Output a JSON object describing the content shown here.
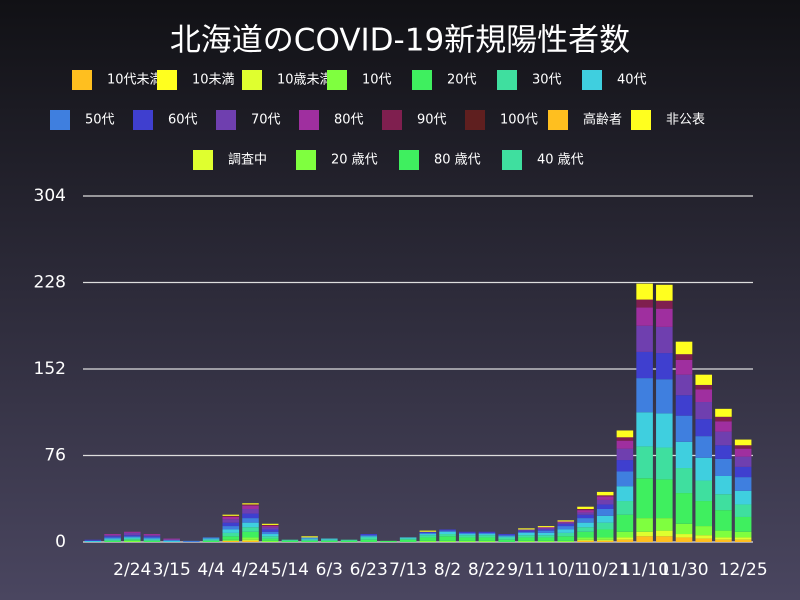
{
  "chart_data": {
    "type": "stacked-bar",
    "title": "北海道のCOVID-19新規陽性者数",
    "categories": [
      null,
      null,
      "2/24",
      null,
      "3/15",
      null,
      "4/4",
      null,
      "4/24",
      null,
      "5/14",
      null,
      "6/3",
      null,
      "6/23",
      null,
      "7/13",
      null,
      "8/2",
      null,
      "8/22",
      null,
      "9/11",
      null,
      "10/1",
      null,
      "10/21",
      null,
      "11/10",
      null,
      "11/30",
      null,
      null,
      "12/25"
    ],
    "ylim": [
      0,
      304
    ],
    "yticks": [
      0,
      76,
      152,
      228,
      304
    ],
    "grid": true,
    "series": [
      {
        "name": "10代未満",
        "color": "#ffbf1f",
        "values": [
          0,
          0,
          0,
          0,
          0,
          0,
          0,
          1,
          1,
          0,
          0,
          0,
          0,
          0,
          0,
          0,
          0,
          0,
          0,
          0,
          0,
          0,
          0,
          0,
          0,
          1,
          1,
          2,
          5,
          5,
          4,
          3,
          2,
          2
        ]
      },
      {
        "name": "10未満",
        "color": "#ffff1f",
        "values": [
          0,
          0,
          0,
          0,
          0,
          0,
          0,
          0,
          0,
          0,
          0,
          0,
          0,
          0,
          0,
          0,
          0,
          0,
          0,
          0,
          0,
          0,
          0,
          0,
          0,
          0,
          0,
          0,
          0,
          0,
          0,
          0,
          0,
          0
        ]
      },
      {
        "name": "10歳未満",
        "color": "#dfff2f",
        "values": [
          0,
          0,
          0,
          0,
          0,
          0,
          0,
          0,
          1,
          0,
          0,
          0,
          0,
          0,
          0,
          0,
          0,
          0,
          0,
          0,
          0,
          0,
          0,
          0,
          0,
          1,
          1,
          2,
          4,
          5,
          3,
          3,
          2,
          2
        ]
      },
      {
        "name": "10代",
        "color": "#7fff3f",
        "values": [
          0,
          0,
          1,
          0,
          0,
          0,
          0,
          1,
          2,
          1,
          0,
          0,
          0,
          0,
          0,
          0,
          0,
          1,
          1,
          1,
          1,
          0,
          1,
          1,
          1,
          2,
          2,
          5,
          12,
          11,
          9,
          8,
          6,
          5
        ]
      },
      {
        "name": "20代",
        "color": "#3fef5f",
        "values": [
          0,
          1,
          1,
          1,
          0,
          0,
          1,
          3,
          5,
          2,
          1,
          1,
          1,
          1,
          2,
          1,
          2,
          3,
          4,
          3,
          3,
          2,
          3,
          3,
          4,
          5,
          7,
          15,
          35,
          34,
          27,
          22,
          18,
          13
        ]
      },
      {
        "name": "30代",
        "color": "#3fdf9f",
        "values": [
          0,
          1,
          1,
          1,
          0,
          0,
          1,
          3,
          4,
          2,
          1,
          1,
          1,
          1,
          2,
          0,
          1,
          2,
          2,
          2,
          2,
          2,
          2,
          2,
          3,
          4,
          6,
          12,
          28,
          28,
          22,
          18,
          14,
          11
        ]
      },
      {
        "name": "40代",
        "color": "#3fcfdf",
        "values": [
          1,
          1,
          1,
          1,
          1,
          0,
          1,
          3,
          4,
          2,
          0,
          1,
          1,
          0,
          1,
          0,
          1,
          1,
          2,
          1,
          1,
          1,
          2,
          2,
          3,
          4,
          6,
          13,
          30,
          30,
          23,
          20,
          16,
          12
        ]
      },
      {
        "name": "50代",
        "color": "#3f7fdf",
        "values": [
          0,
          1,
          1,
          1,
          1,
          1,
          1,
          3,
          4,
          2,
          0,
          1,
          0,
          0,
          1,
          0,
          0,
          1,
          1,
          1,
          1,
          1,
          1,
          2,
          3,
          4,
          6,
          13,
          30,
          30,
          23,
          19,
          15,
          12
        ]
      },
      {
        "name": "60代",
        "color": "#3f3fcf",
        "values": [
          1,
          1,
          1,
          1,
          0,
          0,
          0,
          3,
          4,
          2,
          0,
          0,
          0,
          0,
          1,
          0,
          0,
          1,
          1,
          1,
          1,
          1,
          1,
          1,
          2,
          3,
          4,
          10,
          23,
          23,
          18,
          15,
          12,
          9
        ]
      },
      {
        "name": "70代",
        "color": "#6f3faf",
        "values": [
          0,
          1,
          2,
          1,
          0,
          0,
          0,
          3,
          4,
          2,
          0,
          0,
          0,
          0,
          0,
          0,
          0,
          0,
          0,
          0,
          0,
          0,
          1,
          1,
          1,
          2,
          4,
          10,
          23,
          23,
          18,
          15,
          12,
          9
        ]
      },
      {
        "name": "80代",
        "color": "#9f2f9f",
        "values": [
          0,
          1,
          1,
          1,
          1,
          0,
          0,
          2,
          3,
          1,
          0,
          0,
          0,
          0,
          0,
          0,
          0,
          0,
          0,
          0,
          0,
          0,
          0,
          1,
          1,
          2,
          3,
          7,
          16,
          16,
          13,
          11,
          9,
          7
        ]
      },
      {
        "name": "90代",
        "color": "#7f1f4f",
        "values": [
          0,
          0,
          0,
          0,
          0,
          0,
          0,
          1,
          1,
          1,
          0,
          0,
          0,
          0,
          0,
          0,
          0,
          0,
          0,
          0,
          0,
          0,
          0,
          0,
          0,
          1,
          1,
          3,
          7,
          7,
          5,
          4,
          4,
          3
        ]
      },
      {
        "name": "100代",
        "color": "#5f1f1f",
        "values": [
          0,
          0,
          0,
          0,
          0,
          0,
          0,
          0,
          0,
          0,
          0,
          0,
          0,
          0,
          0,
          0,
          0,
          0,
          0,
          0,
          0,
          0,
          0,
          0,
          0,
          0,
          0,
          0,
          0,
          0,
          0,
          0,
          0,
          0
        ]
      },
      {
        "name": "高齢者",
        "color": "#ffbf1f",
        "values": [
          0,
          0,
          0,
          0,
          0,
          0,
          0,
          0,
          0,
          0,
          0,
          0,
          0,
          0,
          0,
          0,
          0,
          0,
          0,
          0,
          0,
          0,
          0,
          0,
          0,
          0,
          0,
          0,
          0,
          0,
          0,
          0,
          0,
          0
        ]
      },
      {
        "name": "非公表",
        "color": "#ffff1f",
        "values": [
          0,
          0,
          0,
          0,
          0,
          0,
          0,
          1,
          1,
          1,
          0,
          1,
          0,
          0,
          0,
          0,
          0,
          1,
          0,
          0,
          0,
          0,
          1,
          1,
          1,
          2,
          3,
          6,
          14,
          14,
          11,
          9,
          7,
          5
        ]
      },
      {
        "name": "調査中",
        "color": "#dfff2f",
        "values": [
          0,
          0,
          0,
          0,
          0,
          0,
          0,
          0,
          0,
          0,
          0,
          0,
          0,
          0,
          0,
          0,
          0,
          0,
          0,
          0,
          0,
          0,
          0,
          0,
          0,
          0,
          0,
          0,
          0,
          0,
          0,
          0,
          0,
          0
        ]
      },
      {
        "name": "20 歳代",
        "color": "#7fff3f",
        "values": [
          0,
          0,
          0,
          0,
          0,
          0,
          0,
          0,
          0,
          0,
          0,
          0,
          0,
          0,
          0,
          0,
          0,
          0,
          0,
          0,
          0,
          0,
          0,
          0,
          0,
          0,
          0,
          0,
          0,
          0,
          0,
          0,
          0,
          0
        ]
      },
      {
        "name": "80 歳代",
        "color": "#3fef5f",
        "values": [
          0,
          0,
          0,
          0,
          0,
          0,
          0,
          0,
          0,
          0,
          0,
          0,
          0,
          0,
          0,
          0,
          0,
          0,
          0,
          0,
          0,
          0,
          0,
          0,
          0,
          0,
          0,
          0,
          0,
          0,
          0,
          0,
          0,
          0
        ]
      },
      {
        "name": "40 歳代",
        "color": "#3fdf9f",
        "values": [
          0,
          0,
          0,
          0,
          0,
          0,
          0,
          0,
          0,
          0,
          0,
          0,
          0,
          0,
          0,
          0,
          0,
          0,
          0,
          0,
          0,
          0,
          0,
          0,
          0,
          0,
          0,
          0,
          0,
          0,
          0,
          0,
          0,
          0
        ]
      }
    ]
  }
}
